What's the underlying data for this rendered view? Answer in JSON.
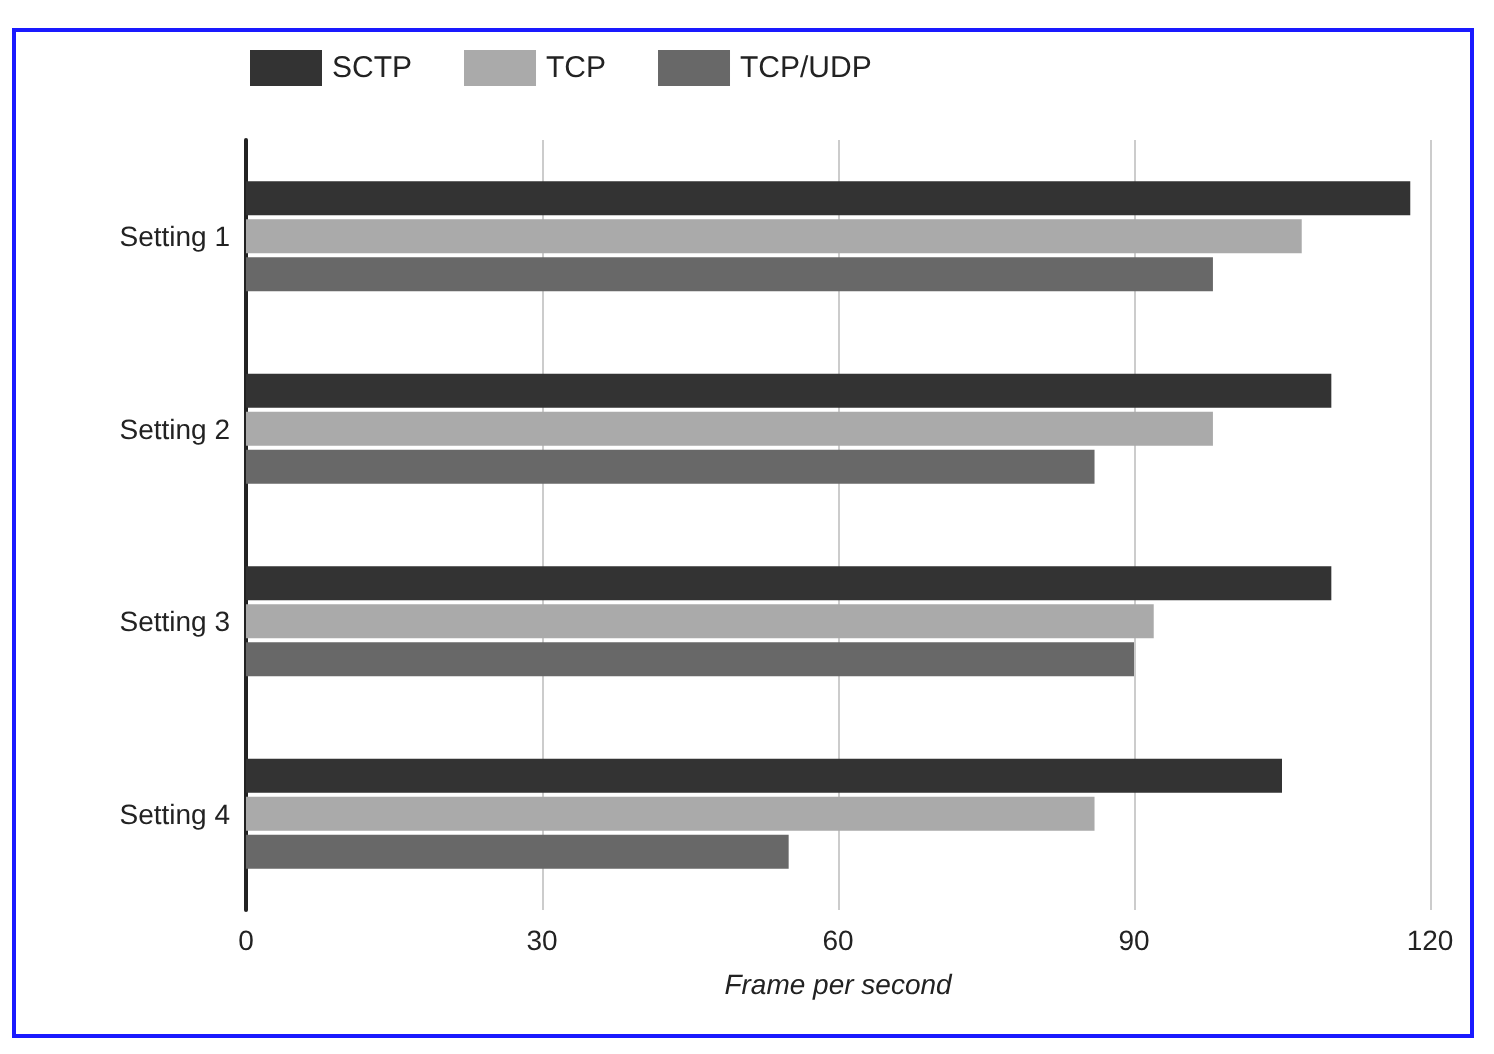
{
  "chart_data": {
    "type": "bar",
    "orientation": "horizontal",
    "xlabel": "Frame per second",
    "categories": [
      "Setting 1",
      "Setting 2",
      "Setting 3",
      "Setting 4"
    ],
    "series": [
      {
        "name": "SCTP",
        "color": "#333333",
        "values": [
          118,
          110,
          110,
          105
        ]
      },
      {
        "name": "TCP",
        "color": "#aaaaaa",
        "values": [
          107,
          98,
          92,
          86
        ]
      },
      {
        "name": "TCP/UDP",
        "color": "#686868",
        "values": [
          98,
          86,
          90,
          55
        ]
      }
    ],
    "xlim": [
      0,
      120
    ],
    "xticks": [
      0,
      30,
      60,
      90,
      120
    ],
    "grid": "x",
    "legend": "top left"
  }
}
